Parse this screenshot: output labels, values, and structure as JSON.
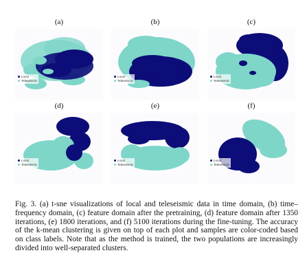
{
  "legend": {
    "local": "Local",
    "teleseismic": "Teleseismic"
  },
  "colors": {
    "local": "#0d0d7a",
    "teleseismic": "#7ed6c8"
  },
  "panels": [
    {
      "label": "(a)"
    },
    {
      "label": "(b)"
    },
    {
      "label": "(c)"
    },
    {
      "label": "(d)"
    },
    {
      "label": "(e)"
    },
    {
      "label": "(f)"
    }
  ],
  "caption": {
    "fig_num": "Fig. 3.",
    "text": "(a) t-sne visualizations of local and teleseismic data in time domain, (b) time–frequency domain, (c) feature domain after the pretraining, (d) feature domain after 1350 iterations, (e) 1800 iterations, and (f) 5100 iterations during the fine-tuning. The accuracy of the k-mean clustering is given on top of each plot and samples are color-coded based on class labels. Note that as the method is trained, the two populations are increasingly divided into well-separated clusters."
  }
}
